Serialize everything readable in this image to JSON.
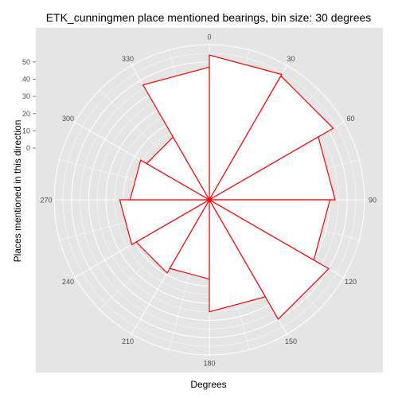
{
  "chart_data": {
    "type": "polar-bar",
    "title": "ETK_cunningmen place mentioned bearings, bin size: 30 degrees",
    "xlabel": "Degrees",
    "ylabel": "Places mentioned in this direction",
    "angle_ticks": [
      "0",
      "30",
      "60",
      "90",
      "120",
      "150",
      "180",
      "210",
      "240",
      "270",
      "300",
      "330"
    ],
    "angle_tick_values": [
      0,
      30,
      60,
      90,
      120,
      150,
      180,
      210,
      240,
      270,
      300,
      330
    ],
    "radial_ticks": [
      "0",
      "10",
      "20",
      "30",
      "40",
      "50"
    ],
    "radial_tick_values": [
      0,
      10,
      20,
      30,
      40,
      50
    ],
    "radial_range": [
      -30,
      61
    ],
    "bin_size_degrees": 30,
    "bins_start": [
      0,
      30,
      60,
      90,
      120,
      150,
      180,
      210,
      240,
      270,
      300,
      330
    ],
    "values": [
      54,
      53,
      43,
      40,
      50,
      35,
      16,
      19,
      22,
      16,
      12,
      47
    ],
    "colors": {
      "panel": "#e5e5e5",
      "grid": "#ffffff",
      "bar_fill": "#ffffff",
      "bar_stroke": "#ff0000",
      "tick_text": "#4d4d4d"
    }
  }
}
